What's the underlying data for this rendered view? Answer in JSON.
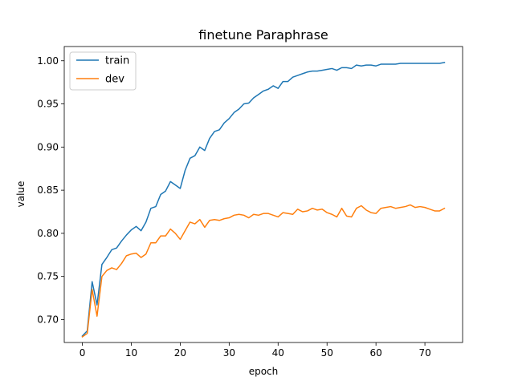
{
  "chart_data": {
    "type": "line",
    "title": "finetune Paraphrase",
    "xlabel": "epoch",
    "ylabel": "value",
    "xlim": [
      -3.7,
      77.7
    ],
    "ylim": [
      0.6735,
      1.0165
    ],
    "xticks": [
      0,
      10,
      20,
      30,
      40,
      50,
      60,
      70
    ],
    "yticks": [
      0.7,
      0.75,
      0.8,
      0.85,
      0.9,
      0.95,
      1.0
    ],
    "ytick_labels": [
      "0.70",
      "0.75",
      "0.80",
      "0.85",
      "0.90",
      "0.95",
      "1.00"
    ],
    "grid": false,
    "legend_position": "upper-left",
    "x": [
      0,
      1,
      2,
      3,
      4,
      5,
      6,
      7,
      8,
      9,
      10,
      11,
      12,
      13,
      14,
      15,
      16,
      17,
      18,
      19,
      20,
      21,
      22,
      23,
      24,
      25,
      26,
      27,
      28,
      29,
      30,
      31,
      32,
      33,
      34,
      35,
      36,
      37,
      38,
      39,
      40,
      41,
      42,
      43,
      44,
      45,
      46,
      47,
      48,
      49,
      50,
      51,
      52,
      53,
      54,
      55,
      56,
      57,
      58,
      59,
      60,
      61,
      62,
      63,
      64,
      65,
      66,
      67,
      68,
      69,
      70,
      71,
      72,
      73,
      74
    ],
    "series": [
      {
        "name": "train",
        "color": "#1f77b4",
        "values": [
          0.681,
          0.687,
          0.744,
          0.717,
          0.764,
          0.772,
          0.781,
          0.783,
          0.791,
          0.798,
          0.804,
          0.808,
          0.803,
          0.813,
          0.829,
          0.831,
          0.845,
          0.849,
          0.86,
          0.856,
          0.852,
          0.873,
          0.887,
          0.89,
          0.9,
          0.896,
          0.91,
          0.918,
          0.92,
          0.928,
          0.933,
          0.94,
          0.944,
          0.95,
          0.951,
          0.957,
          0.961,
          0.965,
          0.967,
          0.971,
          0.968,
          0.976,
          0.976,
          0.981,
          0.983,
          0.985,
          0.987,
          0.988,
          0.988,
          0.989,
          0.99,
          0.991,
          0.989,
          0.992,
          0.992,
          0.991,
          0.995,
          0.994,
          0.995,
          0.995,
          0.994,
          0.996,
          0.996,
          0.996,
          0.996,
          0.997,
          0.997,
          0.997,
          0.997,
          0.997,
          0.997,
          0.997,
          0.997,
          0.997,
          0.998
        ]
      },
      {
        "name": "dev",
        "color": "#ff7f0e",
        "values": [
          0.68,
          0.684,
          0.735,
          0.704,
          0.75,
          0.757,
          0.76,
          0.758,
          0.765,
          0.774,
          0.776,
          0.777,
          0.772,
          0.776,
          0.789,
          0.789,
          0.797,
          0.797,
          0.805,
          0.8,
          0.793,
          0.803,
          0.813,
          0.811,
          0.816,
          0.807,
          0.815,
          0.816,
          0.815,
          0.817,
          0.818,
          0.821,
          0.822,
          0.821,
          0.818,
          0.822,
          0.821,
          0.823,
          0.823,
          0.821,
          0.819,
          0.824,
          0.823,
          0.822,
          0.828,
          0.825,
          0.826,
          0.829,
          0.827,
          0.828,
          0.824,
          0.822,
          0.819,
          0.829,
          0.82,
          0.819,
          0.829,
          0.832,
          0.827,
          0.824,
          0.823,
          0.829,
          0.83,
          0.831,
          0.829,
          0.83,
          0.831,
          0.833,
          0.83,
          0.831,
          0.83,
          0.828,
          0.826,
          0.826,
          0.829
        ]
      }
    ]
  }
}
